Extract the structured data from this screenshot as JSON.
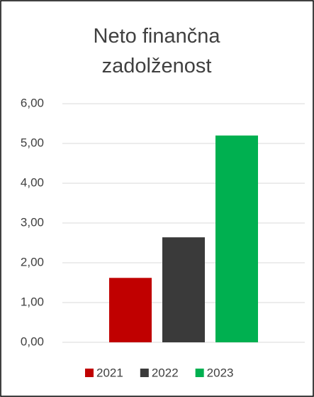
{
  "chart_data": {
    "type": "bar",
    "title": "Neto finančna zadolženost",
    "categories": [
      null
    ],
    "series": [
      {
        "name": "2021",
        "color": "#c00000",
        "values": [
          1.62
        ]
      },
      {
        "name": "2022",
        "color": "#3a3a3a",
        "values": [
          2.64
        ]
      },
      {
        "name": "2023",
        "color": "#00b050",
        "values": [
          5.2
        ]
      }
    ],
    "ylim": [
      0,
      6
    ],
    "yticks": [
      {
        "value": 0,
        "label": "0,00"
      },
      {
        "value": 1,
        "label": "1,00"
      },
      {
        "value": 2,
        "label": "2,00"
      },
      {
        "value": 3,
        "label": "3,00"
      },
      {
        "value": 4,
        "label": "4,00"
      },
      {
        "value": 5,
        "label": "5,00"
      },
      {
        "value": 6,
        "label": "6,00"
      }
    ],
    "grid": true,
    "legend": "bottom"
  }
}
